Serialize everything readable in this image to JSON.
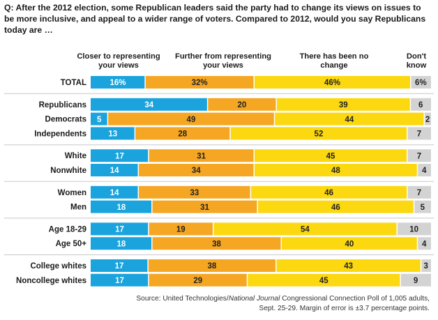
{
  "question": "Q: After the 2012 election, some Republican leaders said the party had to change its views on issues to be more inclusive, and appeal to a wider range of voters. Compared to 2012, would you say Republicans today are …",
  "source": {
    "prefix": "Source: United Technologies/",
    "italic": "National Journal",
    "suffix": " Congressional Connection Poll of 1,005 adults, Sept. 25-29. Margin of error is ±3.7 percentage points."
  },
  "chart_data": {
    "type": "bar",
    "orientation": "horizontal",
    "stacked": true,
    "xlim": [
      0,
      100
    ],
    "series": [
      {
        "name": "Closer to representing your views",
        "color": "#1aa3dd"
      },
      {
        "name": "Further from representing your views",
        "color": "#f5a623"
      },
      {
        "name": "There has been no change",
        "color": "#fbd80f"
      },
      {
        "name": "Don't know",
        "color": "#d3d3d3"
      }
    ],
    "rows": [
      {
        "label": "TOTAL",
        "values": [
          16,
          32,
          46,
          6
        ],
        "labels": [
          "16%",
          "32%",
          "46%",
          "6%"
        ],
        "group": 0
      },
      {
        "label": "Republicans",
        "values": [
          34,
          20,
          39,
          6
        ],
        "labels": [
          "34",
          "20",
          "39",
          "6"
        ],
        "group": 1
      },
      {
        "label": "Democrats",
        "values": [
          5,
          49,
          44,
          2
        ],
        "labels": [
          "5",
          "49",
          "44",
          "2"
        ],
        "group": 1
      },
      {
        "label": "Independents",
        "values": [
          13,
          28,
          52,
          7
        ],
        "labels": [
          "13",
          "28",
          "52",
          "7"
        ],
        "group": 1
      },
      {
        "label": "White",
        "values": [
          17,
          31,
          45,
          7
        ],
        "labels": [
          "17",
          "31",
          "45",
          "7"
        ],
        "group": 2
      },
      {
        "label": "Nonwhite",
        "values": [
          14,
          34,
          48,
          4
        ],
        "labels": [
          "14",
          "34",
          "48",
          "4"
        ],
        "group": 2
      },
      {
        "label": "Women",
        "values": [
          14,
          33,
          46,
          7
        ],
        "labels": [
          "14",
          "33",
          "46",
          "7"
        ],
        "group": 3
      },
      {
        "label": "Men",
        "values": [
          18,
          31,
          46,
          5
        ],
        "labels": [
          "18",
          "31",
          "46",
          "5"
        ],
        "group": 3
      },
      {
        "label": "Age 18-29",
        "values": [
          17,
          19,
          54,
          10
        ],
        "labels": [
          "17",
          "19",
          "54",
          "10"
        ],
        "group": 4
      },
      {
        "label": "Age 50+",
        "values": [
          18,
          38,
          40,
          4
        ],
        "labels": [
          "18",
          "38",
          "40",
          "4"
        ],
        "group": 4
      },
      {
        "label": "College whites",
        "values": [
          17,
          38,
          43,
          3
        ],
        "labels": [
          "17",
          "38",
          "43",
          "3"
        ],
        "group": 5
      },
      {
        "label": "Noncollege whites",
        "values": [
          17,
          29,
          45,
          9
        ],
        "labels": [
          "17",
          "29",
          "45",
          "9"
        ],
        "group": 5
      }
    ]
  }
}
